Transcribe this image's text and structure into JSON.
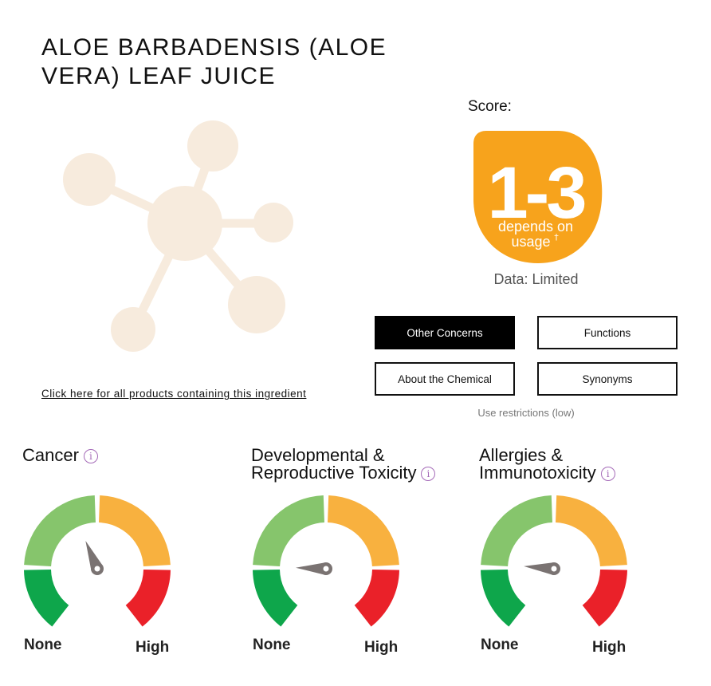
{
  "ingredient": {
    "title": "ALOE BARBADENSIS (ALOE VERA) LEAF JUICE",
    "products_link": "Click here for all products containing this ingredient"
  },
  "score": {
    "label": "Score:",
    "range": "1-3",
    "depends_line1": "depends on",
    "depends_line2": "usage",
    "footnote_mark": "†",
    "badge_color": "#f7a31c",
    "data_label": "Data: Limited"
  },
  "buttons": {
    "other_concerns": "Other Concerns",
    "functions": "Functions",
    "about": "About the Chemical",
    "synonyms": "Synonyms"
  },
  "use_restrictions": "Use restrictions (low)",
  "gauges": [
    {
      "title_line1": "Cancer",
      "title_line2": "",
      "label_none": "None",
      "label_high": "High",
      "level": 0.42
    },
    {
      "title_line1": "Developmental &",
      "title_line2": "Reproductive Toxicity",
      "label_none": "None",
      "label_high": "High",
      "level": 0.19
    },
    {
      "title_line1": "Allergies &",
      "title_line2": "Immunotoxicity",
      "label_none": "None",
      "label_high": "High",
      "level": 0.2
    }
  ],
  "colors": {
    "gauge_dark_green": "#0ea64b",
    "gauge_light_green": "#86c56c",
    "gauge_orange": "#f8b13f",
    "gauge_red": "#ea2129",
    "needle": "#7a7372",
    "molecule": "#f7ebdd",
    "info_icon": "#a56bb8"
  },
  "icons": {
    "molecule": "molecule-icon",
    "info": "info-icon"
  }
}
